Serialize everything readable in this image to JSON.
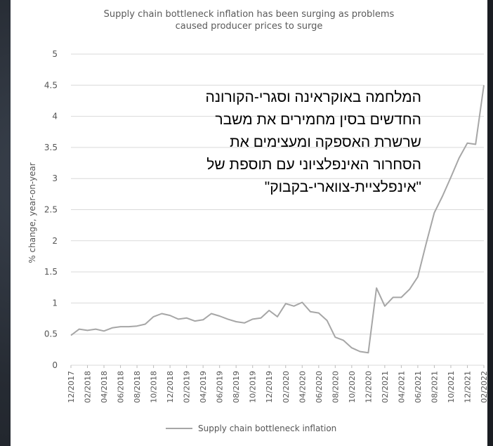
{
  "chart_data": {
    "type": "line",
    "title": "Supply chain bottleneck inflation has been surging as problems caused producer prices to surge",
    "title_lines": [
      "Supply chain bottleneck inflation has been surging as problems",
      "caused producer prices to surge"
    ],
    "ylabel": "% change, year-on-year",
    "xlabel": "",
    "ylim": [
      0,
      5
    ],
    "y_ticks": [
      "0",
      "0.5",
      "1",
      "1.5",
      "2",
      "2.5",
      "3",
      "3.5",
      "4",
      "4.5",
      "5"
    ],
    "x_tick_labels": [
      "12/2017",
      "02/2018",
      "04/2018",
      "06/2018",
      "08/2018",
      "10/2018",
      "12/2018",
      "02/2019",
      "04/2019",
      "06/2019",
      "08/2019",
      "10/2019",
      "12/2019",
      "02/2020",
      "04/2020",
      "06/2020",
      "08/2020",
      "10/2020",
      "12/2020",
      "02/2021",
      "04/2021",
      "06/2021",
      "08/2021",
      "10/2021",
      "12/2021",
      "02/2022"
    ],
    "grid": "horizontal",
    "legend": "bottom-center",
    "line_color": "#a6a6a6",
    "series": [
      {
        "name": "Supply chain bottleneck inflation",
        "values": [
          0.48,
          0.58,
          0.56,
          0.58,
          0.55,
          0.6,
          0.62,
          0.62,
          0.63,
          0.66,
          0.78,
          0.83,
          0.8,
          0.74,
          0.76,
          0.71,
          0.73,
          0.83,
          0.79,
          0.74,
          0.7,
          0.68,
          0.74,
          0.76,
          0.88,
          0.78,
          0.99,
          0.95,
          1.01,
          0.86,
          0.84,
          0.72,
          0.45,
          0.4,
          0.28,
          0.22,
          0.2,
          1.24,
          0.95,
          1.09,
          1.09,
          1.22,
          1.42,
          1.95,
          2.45,
          2.72,
          3.02,
          3.33,
          3.57,
          3.55,
          4.5
        ]
      }
    ]
  },
  "annotation_lines": [
    "המלחמה באוקראינה וסגרי-הקורונה",
    "החדשים בסין מחמירים את משבר",
    "שרשרת האספקה ומעצימים את",
    "הסחרור האינפלציוני עם תוספת של",
    "\"אינפלציית-צווארי-בקבוק\""
  ]
}
